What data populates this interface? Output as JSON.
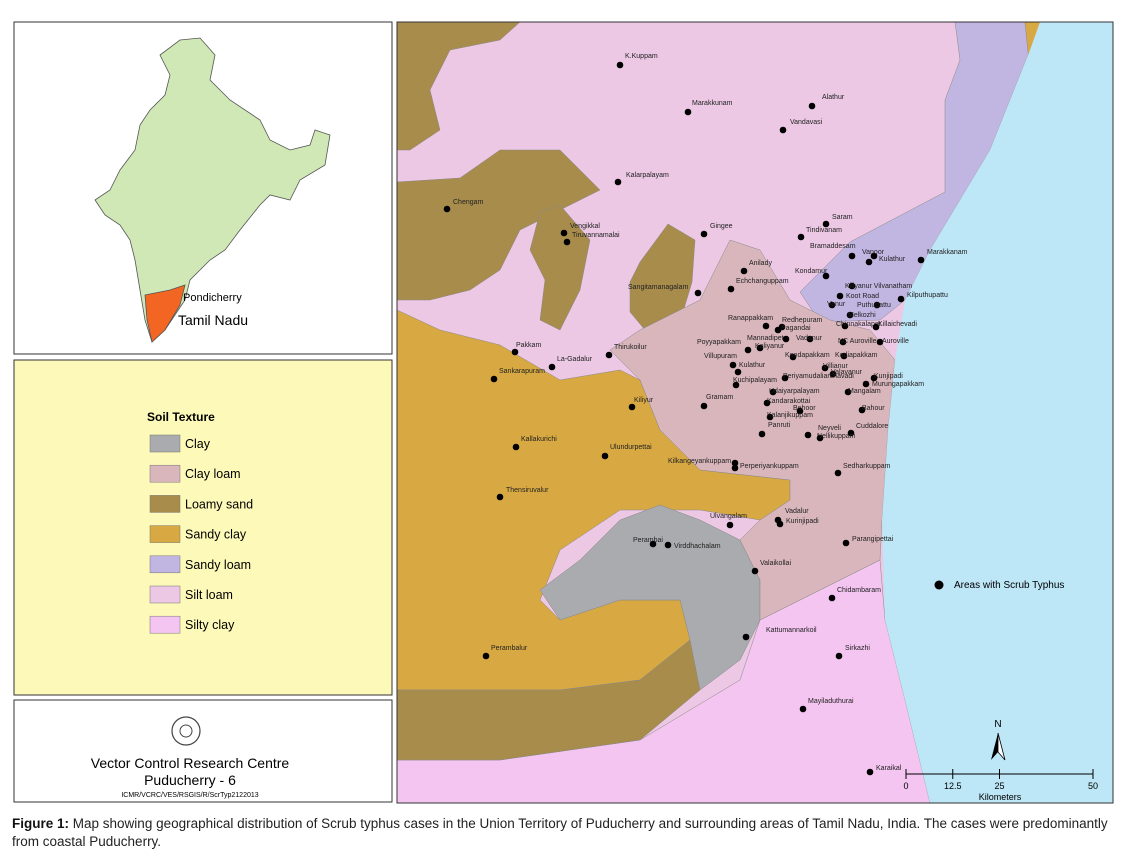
{
  "inset": {
    "labels": [
      "Pondicherry",
      "Tamil Nadu"
    ]
  },
  "legend": {
    "title": "Soil Texture",
    "items": [
      {
        "name": "Clay",
        "color": "#a9abae"
      },
      {
        "name": "Clay loam",
        "color": "#d9b6bc"
      },
      {
        "name": "Loamy sand",
        "color": "#a88c4c"
      },
      {
        "name": "Sandy clay",
        "color": "#d8a942"
      },
      {
        "name": "Sandy loam",
        "color": "#c1b6e2"
      },
      {
        "name": "Silt loam",
        "color": "#ecc8e4"
      },
      {
        "name": "Silty clay",
        "color": "#f4c5f1"
      }
    ]
  },
  "institute": {
    "name": "Vector Control Research Centre",
    "place": "Puducherry - 6",
    "code": "ICMR/VCRC/VES/RSGIS/R/ScrTyp2122013"
  },
  "map": {
    "places": [
      "K.Kuppam",
      "Marakkunam",
      "Alathur",
      "Vandavasi",
      "Kalarpalayam",
      "Chengam",
      "Vengikkal",
      "Tiruvannamalai",
      "Gingee",
      "Saram",
      "Tindivanam",
      "Bramaddesam",
      "Vanoor",
      "Kulathur",
      "Marakkanam",
      "Anilady",
      "Kondamur",
      "Echchanguppam",
      "Sangitamanagalam",
      "Kiliyanur Vilvanatham",
      "Koot Road",
      "Kilputhupattu",
      "Vanur",
      "Puthupattu",
      "Ranappakkam",
      "Redhepuram",
      "Pagandai",
      "Melkozhi",
      "Chinnakalapet",
      "Killaichevadi",
      "Poyyapakkam",
      "Mannadipet",
      "Vadanur",
      "NC Auroville",
      "Auroville",
      "Koliyanur",
      "Villupuram",
      "Koodapakkam",
      "Kodiapakkam",
      "Kulathur",
      "Villianur",
      "Valavanur",
      "Periyamudaliarchavadi",
      "Kunjipadi",
      "Murungapakkam",
      "Kuchipalayam",
      "Udaiyarpalayam",
      "Mangalam",
      "Thirukoilur",
      "Pakkam",
      "La-Gadalur",
      "Sankarapuram",
      "Kiliyur",
      "Gramam",
      "Kandarakottai",
      "Behoor",
      "Bahour",
      "Kalanjikuppam",
      "Panruti",
      "Neyveli",
      "Cuddalore",
      "Nellikuppam",
      "Kallakurichi",
      "Ulundurpettai",
      "Kilkangeyankuppam",
      "Perperiyankuppam",
      "Sedharkuppam",
      "Thensiruvalur",
      "Ulvangalam",
      "Vadalur",
      "Kurinjipadi",
      "Perambai",
      "Virddhachalam",
      "Parangipettai",
      "Valaikollai",
      "Chidambaram",
      "Perambalur",
      "Kattumannarkoil",
      "Sirkazhi",
      "Mayiladuthurai",
      "Karaikal"
    ],
    "point_legend": "Areas with Scrub Typhus",
    "north": "N",
    "scale": {
      "ticks": [
        0,
        12.5,
        25,
        50
      ],
      "unit": "Kilometers"
    }
  },
  "caption": {
    "label": "Figure 1:",
    "text": "Map showing geographical distribution of Scrub typhus cases in the Union Territory of Puducherry and surrounding areas of Tamil Nadu, India. The cases were predominantly from coastal Puducherry."
  }
}
